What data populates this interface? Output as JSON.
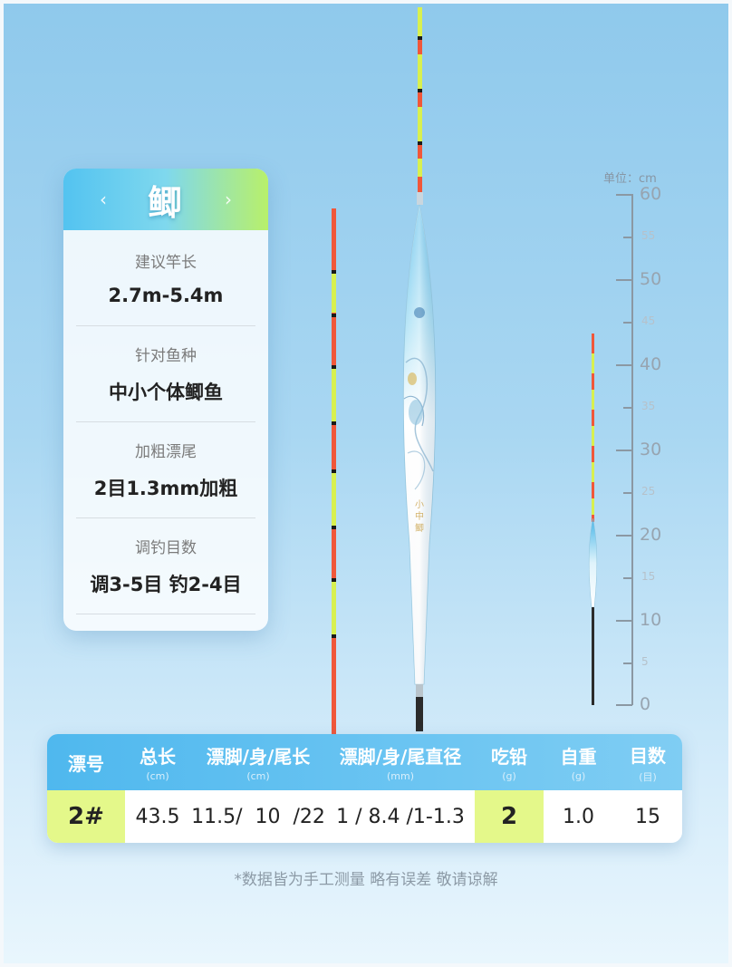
{
  "card": {
    "title": "鲫",
    "prev_arrow": "‹",
    "next_arrow": "›",
    "rows": [
      {
        "label": "建议竿长",
        "value": "2.7m-5.4m"
      },
      {
        "label": "针对鱼种",
        "value": "中小个体鲫鱼"
      },
      {
        "label": "加粗漂尾",
        "value": "2目1.3mm加粗"
      },
      {
        "label": "调钓目数",
        "value": "调3-5目 钓2-4目"
      }
    ]
  },
  "scale": {
    "unit": "单位：cm",
    "major_labels": [
      "60",
      "50",
      "40",
      "30",
      "20",
      "10",
      "0"
    ],
    "minor_labels": [
      "55",
      "45",
      "35",
      "25",
      "15",
      "5"
    ]
  },
  "table": {
    "headers": [
      {
        "label": "漂号",
        "unit": ""
      },
      {
        "label": "总长",
        "unit": "(cm)"
      },
      {
        "label": "漂脚/身/尾长",
        "unit": "(cm)"
      },
      {
        "label": "漂脚/身/尾直径",
        "unit": "(mm)"
      },
      {
        "label": "吃铅",
        "unit": "(g)"
      },
      {
        "label": "自重",
        "unit": "(g)"
      },
      {
        "label": "目数",
        "unit": "(目)"
      }
    ],
    "row": [
      "2#",
      "43.5",
      "11.5/  10  /22",
      "1 / 8.4 /1-1.3",
      "2",
      "1.0",
      "15"
    ]
  },
  "note": "*数据皆为手工测量 略有误差 敬请谅解",
  "colors": {
    "accent_blue": "#4fb8ee",
    "accent_lime": "#b8f06a",
    "highlight_cell": "#e4f88a",
    "tail_red": "#f0573a",
    "tail_yellow": "#d8f050"
  }
}
